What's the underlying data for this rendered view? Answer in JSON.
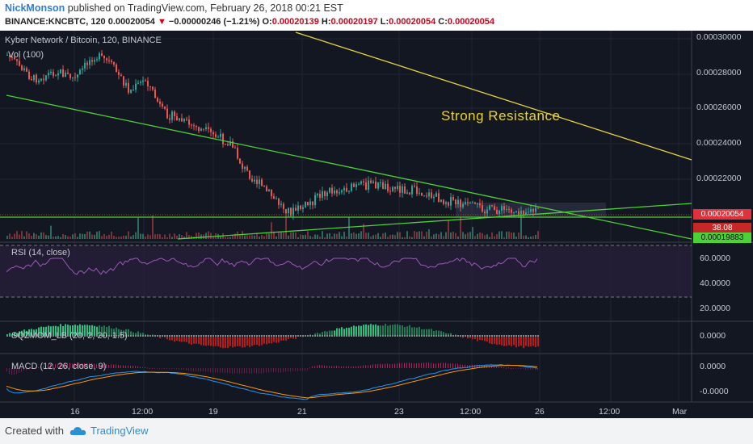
{
  "header": {
    "author": "NickMonson",
    "published_text": "published on TradingView.com, February 26, 2018 00:21 EST",
    "symbol": "BINANCE:KNCBTC, 120",
    "last_price": "0.00020054",
    "change_arrow": "▼",
    "change": "−0.00000246 (−1.21%)",
    "o_label": "O:",
    "o_value": "0.00020139",
    "h_label": "H:",
    "h_value": "0.00020197",
    "l_label": "L:",
    "l_value": "0.00020054",
    "c_label": "C:",
    "c_value": "0.00020054"
  },
  "chart": {
    "title": "Kyber Network / Bitcoin, 120, BINANCE",
    "volume_label": "Vol (100)",
    "annotation": "Strong Resistance",
    "price_axis": [
      "0.00030000",
      "0.00028000",
      "0.00026000",
      "0.00024000",
      "0.00022000"
    ],
    "price_tag_current": "0.00020054",
    "price_tag_volume": "38.08",
    "price_tag_support": "0.00019883",
    "time_axis": [
      "16",
      "12:00",
      "19",
      "21",
      "23",
      "12:00",
      "26",
      "12:00",
      "Mar"
    ],
    "colors": {
      "bg": "#131722",
      "up": "#26a69a",
      "down": "#ef5350",
      "trend_green": "#4cd137",
      "trend_yellow": "#e6d23a",
      "rsi": "#9c5ab8"
    }
  },
  "rsi": {
    "label": "RSI (14, close)",
    "axis": [
      "60.0000",
      "40.0000",
      "20.0000"
    ]
  },
  "sqzmom": {
    "label": "SQZMOM_LB (20, 2, 20, 1.5)",
    "axis": [
      "0.0000"
    ]
  },
  "macd": {
    "label": "MACD (12, 26, close, 9)",
    "axis": [
      "0.0000",
      "-0.0000"
    ]
  },
  "footer": {
    "created_with": "Created with",
    "brand": "TradingView"
  }
}
